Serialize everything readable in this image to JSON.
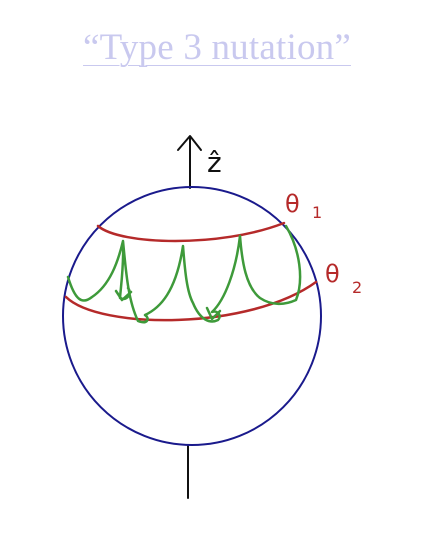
{
  "title": "“Type 3 nutation”",
  "labels": {
    "z_axis": "ẑ",
    "theta1": "θ",
    "theta1_sub": "1",
    "theta2": "θ",
    "theta2_sub": "2"
  },
  "colors": {
    "title": "#c9c9ef",
    "sphere": "#1a1a8c",
    "bounds": "#b52a2a",
    "path": "#3e9a3a",
    "axis": "#111111"
  }
}
